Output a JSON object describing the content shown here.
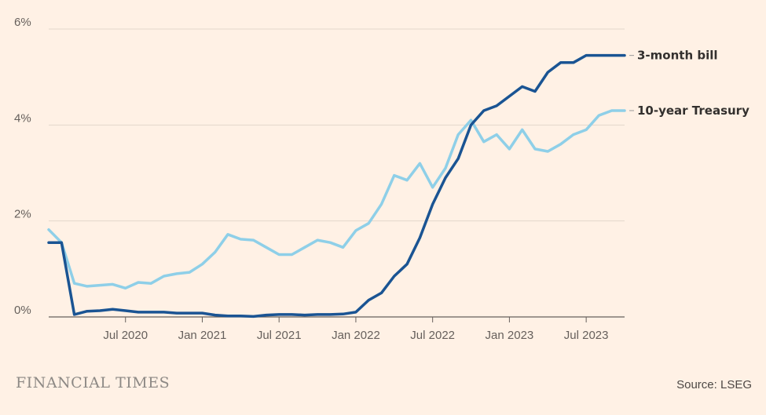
{
  "chart_data": {
    "type": "line",
    "title": "",
    "xlabel": "",
    "ylabel": "",
    "x_range": [
      "2020-01",
      "2023-10"
    ],
    "ylim": [
      0,
      6
    ],
    "y_ticks": [
      "0%",
      "2%",
      "4%",
      "6%"
    ],
    "y_tick_values": [
      0,
      2,
      4,
      6
    ],
    "x_ticks": [
      "Jul 2020",
      "Jan 2021",
      "Jul 2021",
      "Jan 2022",
      "Jul 2022",
      "Jan 2023",
      "Jul 2023"
    ],
    "x_tick_dates": [
      "2020-07",
      "2021-01",
      "2021-07",
      "2022-01",
      "2022-07",
      "2023-01",
      "2023-07"
    ],
    "grid": true,
    "series": [
      {
        "name": "10-year Treasury",
        "color": "#8ecfe8",
        "x": [
          "2020-01",
          "2020-02",
          "2020-03",
          "2020-04",
          "2020-05",
          "2020-06",
          "2020-07",
          "2020-08",
          "2020-09",
          "2020-10",
          "2020-11",
          "2020-12",
          "2021-01",
          "2021-02",
          "2021-03",
          "2021-04",
          "2021-05",
          "2021-06",
          "2021-07",
          "2021-08",
          "2021-09",
          "2021-10",
          "2021-11",
          "2021-12",
          "2022-01",
          "2022-02",
          "2022-03",
          "2022-04",
          "2022-05",
          "2022-06",
          "2022-07",
          "2022-08",
          "2022-09",
          "2022-10",
          "2022-11",
          "2022-12",
          "2023-01",
          "2023-02",
          "2023-03",
          "2023-04",
          "2023-05",
          "2023-06",
          "2023-07",
          "2023-08",
          "2023-09",
          "2023-10"
        ],
        "values": [
          1.82,
          1.55,
          0.7,
          0.64,
          0.66,
          0.68,
          0.6,
          0.72,
          0.7,
          0.85,
          0.9,
          0.93,
          1.1,
          1.35,
          1.72,
          1.62,
          1.6,
          1.45,
          1.3,
          1.3,
          1.45,
          1.6,
          1.55,
          1.45,
          1.8,
          1.95,
          2.35,
          2.95,
          2.85,
          3.2,
          2.7,
          3.1,
          3.8,
          4.1,
          3.65,
          3.8,
          3.5,
          3.9,
          3.5,
          3.45,
          3.6,
          3.8,
          3.9,
          4.2,
          4.3,
          4.3
        ]
      },
      {
        "name": "3-month bill",
        "color": "#1a5493",
        "x": [
          "2020-01",
          "2020-02",
          "2020-03",
          "2020-04",
          "2020-05",
          "2020-06",
          "2020-07",
          "2020-08",
          "2020-09",
          "2020-10",
          "2020-11",
          "2020-12",
          "2021-01",
          "2021-02",
          "2021-03",
          "2021-04",
          "2021-05",
          "2021-06",
          "2021-07",
          "2021-08",
          "2021-09",
          "2021-10",
          "2021-11",
          "2021-12",
          "2022-01",
          "2022-02",
          "2022-03",
          "2022-04",
          "2022-05",
          "2022-06",
          "2022-07",
          "2022-08",
          "2022-09",
          "2022-10",
          "2022-11",
          "2022-12",
          "2023-01",
          "2023-02",
          "2023-03",
          "2023-04",
          "2023-05",
          "2023-06",
          "2023-07",
          "2023-08",
          "2023-09",
          "2023-10"
        ],
        "values": [
          1.55,
          1.55,
          0.05,
          0.12,
          0.13,
          0.16,
          0.13,
          0.1,
          0.1,
          0.1,
          0.08,
          0.08,
          0.08,
          0.04,
          0.02,
          0.02,
          0.01,
          0.04,
          0.05,
          0.05,
          0.04,
          0.05,
          0.05,
          0.06,
          0.1,
          0.35,
          0.5,
          0.85,
          1.1,
          1.65,
          2.35,
          2.9,
          3.3,
          4.0,
          4.3,
          4.4,
          4.6,
          4.8,
          4.7,
          5.1,
          5.3,
          5.3,
          5.45,
          5.45,
          5.45,
          5.45
        ]
      }
    ]
  },
  "footer": {
    "brand": "FINANCIAL TIMES",
    "source": "Source: LSEG"
  }
}
